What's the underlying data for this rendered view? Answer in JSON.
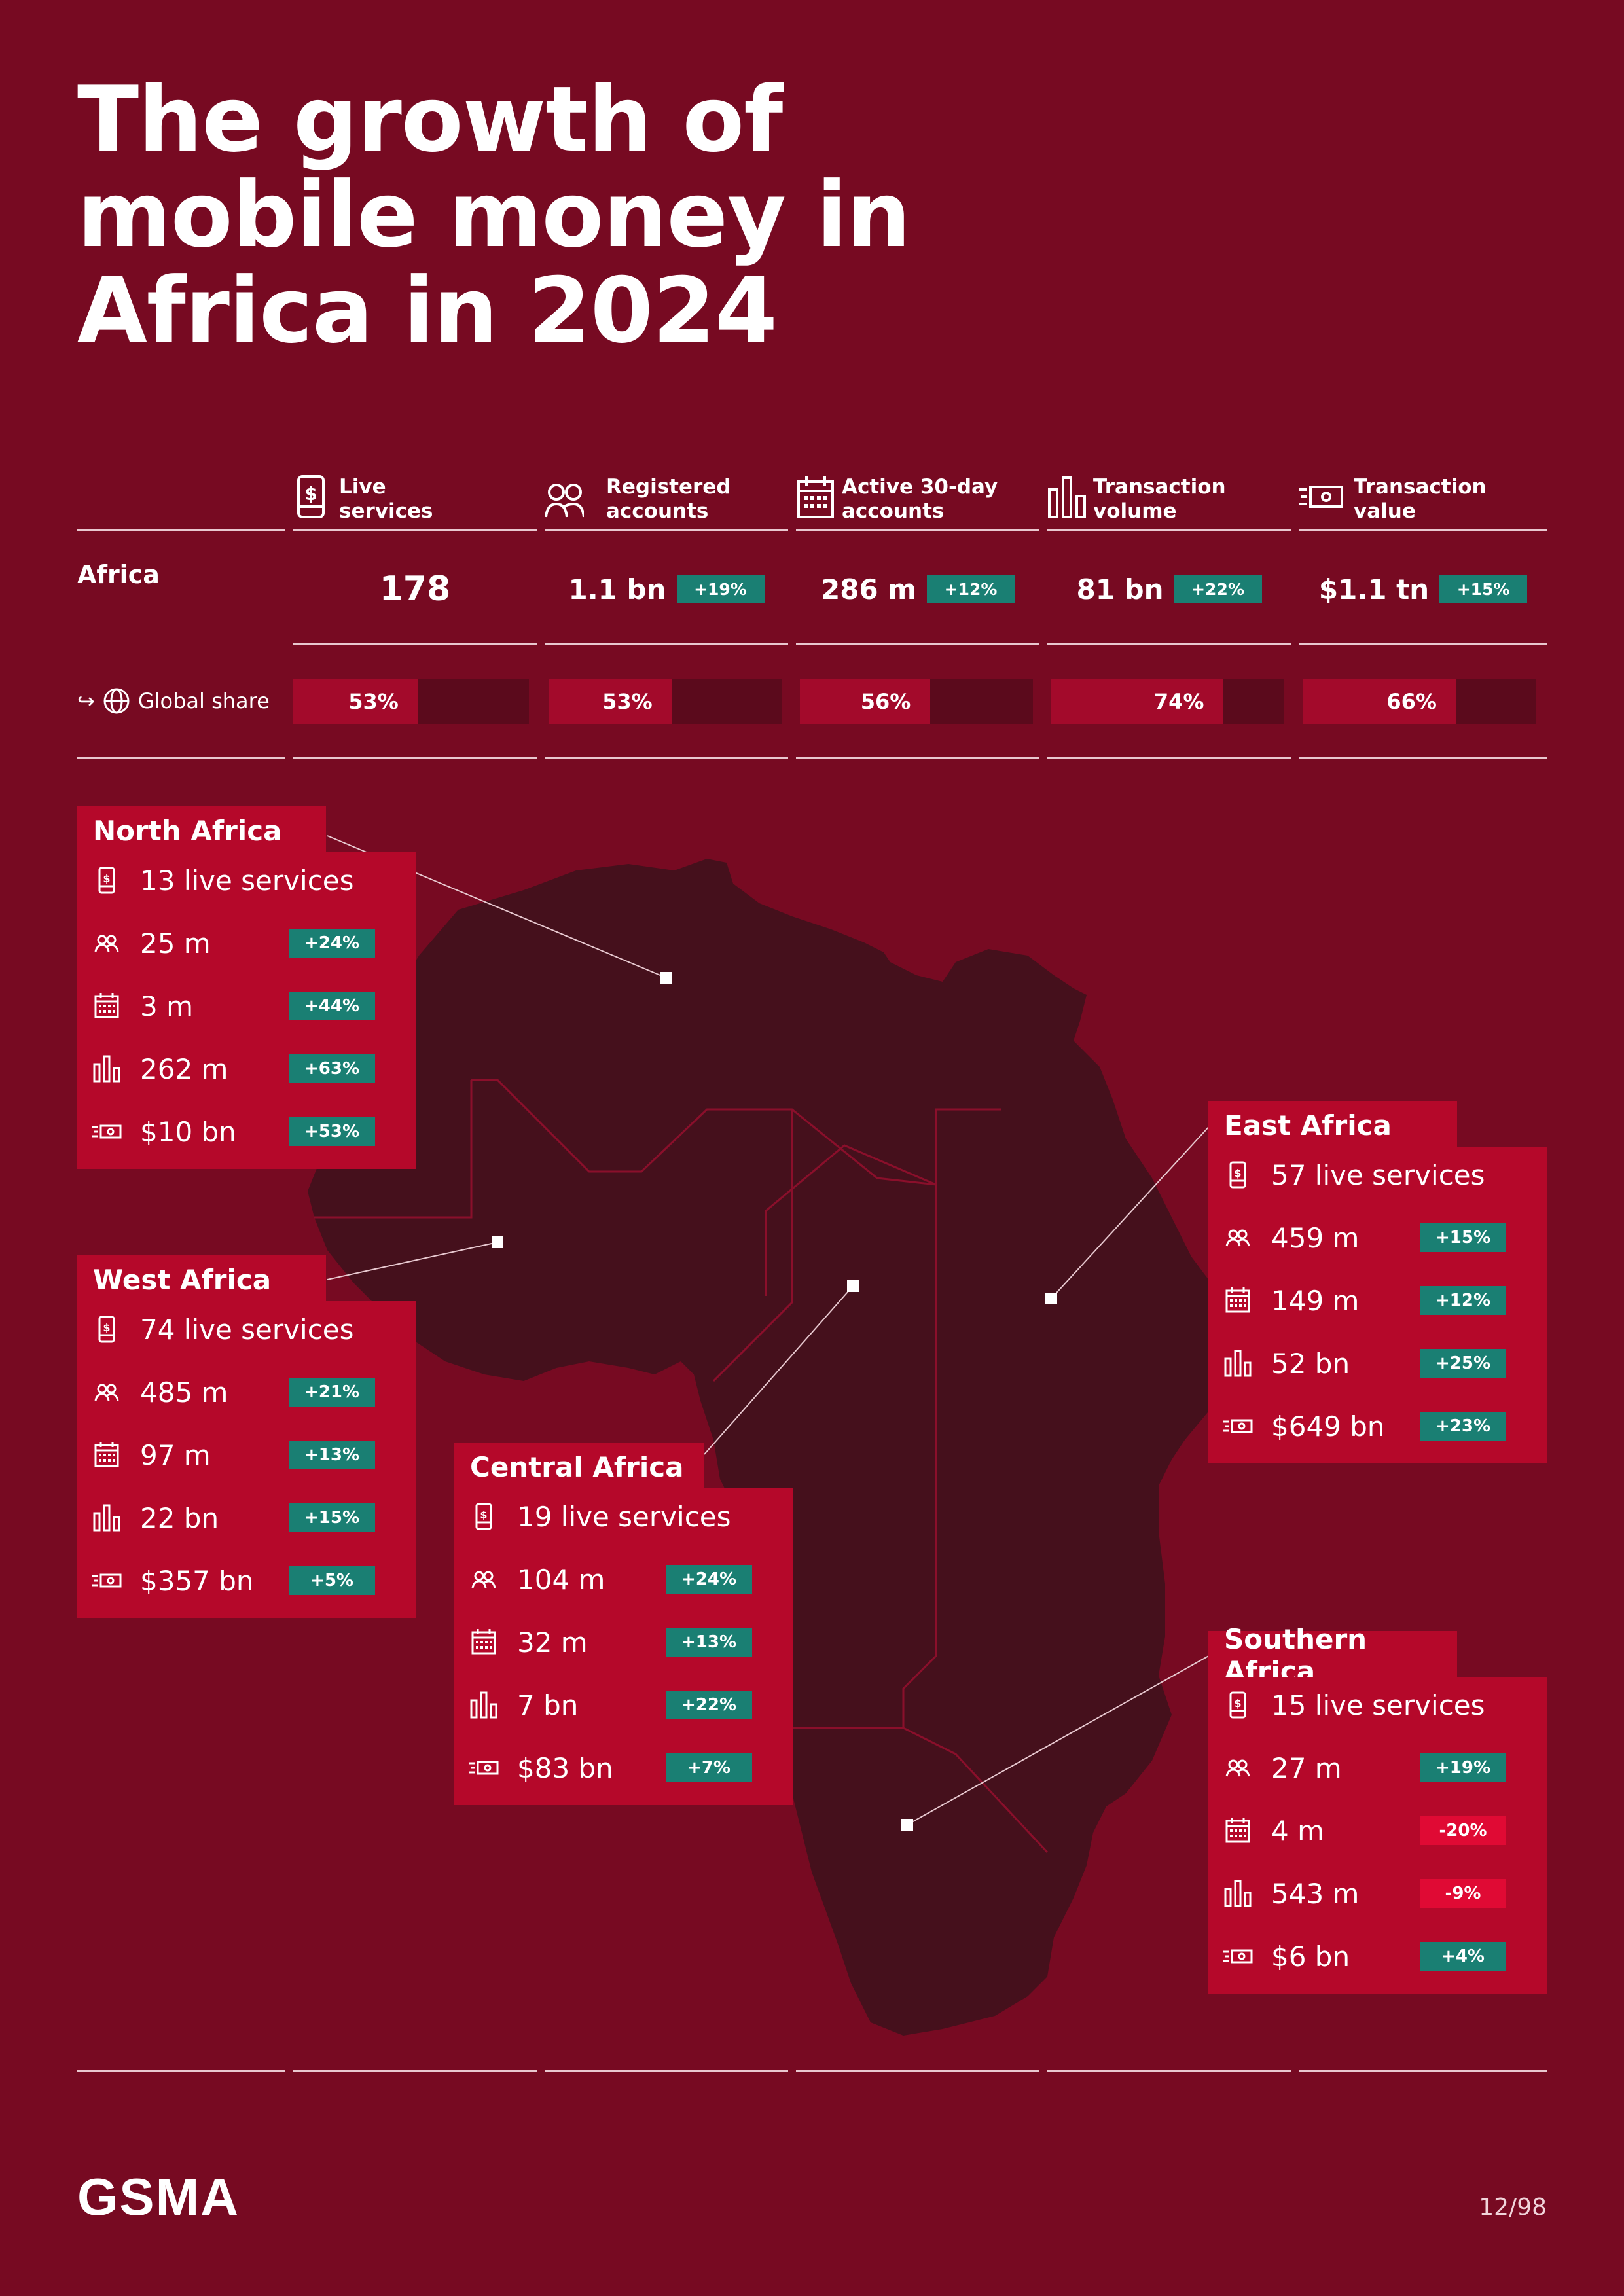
{
  "title_lines": [
    "The growth of",
    "mobile money in",
    "Africa in 2024"
  ],
  "columns": [
    {
      "label_line1": "Live",
      "label_line2": "services",
      "icon": "phone-dollar-icon"
    },
    {
      "label_line1": "Registered",
      "label_line2": "accounts",
      "icon": "users-icon"
    },
    {
      "label_line1": "Active 30-day",
      "label_line2": "accounts",
      "icon": "calendar-icon"
    },
    {
      "label_line1": "Transaction",
      "label_line2": "volume",
      "icon": "bar-chart-icon"
    },
    {
      "label_line1": "Transaction",
      "label_line2": "value",
      "icon": "cash-icon"
    }
  ],
  "africa": {
    "label": "Africa",
    "values": [
      {
        "value": "178",
        "change": ""
      },
      {
        "value": "1.1 bn",
        "change": "+19%"
      },
      {
        "value": "286 m",
        "change": "+12%"
      },
      {
        "value": "81 bn",
        "change": "+22%"
      },
      {
        "value": "$1.1 tn",
        "change": "+15%"
      }
    ]
  },
  "global_share": {
    "label": "Global share",
    "values": [
      {
        "text": "53%",
        "fraction": 0.53
      },
      {
        "text": "53%",
        "fraction": 0.53
      },
      {
        "text": "56%",
        "fraction": 0.56
      },
      {
        "text": "74%",
        "fraction": 0.74
      },
      {
        "text": "66%",
        "fraction": 0.66
      }
    ]
  },
  "regions": {
    "north": {
      "name": "North Africa",
      "live": "13 live services",
      "rows": [
        {
          "value": "25 m",
          "change": "+24%"
        },
        {
          "value": "3 m",
          "change": "+44%"
        },
        {
          "value": "262 m",
          "change": "+63%"
        },
        {
          "value": "$10 bn",
          "change": "+53%"
        }
      ]
    },
    "west": {
      "name": "West Africa",
      "live": "74 live services",
      "rows": [
        {
          "value": "485 m",
          "change": "+21%"
        },
        {
          "value": "97 m",
          "change": "+13%"
        },
        {
          "value": "22 bn",
          "change": "+15%"
        },
        {
          "value": "$357 bn",
          "change": "+5%"
        }
      ]
    },
    "central": {
      "name": "Central Africa",
      "live": "19 live services",
      "rows": [
        {
          "value": "104 m",
          "change": "+24%"
        },
        {
          "value": "32 m",
          "change": "+13%"
        },
        {
          "value": "7 bn",
          "change": "+22%"
        },
        {
          "value": "$83 bn",
          "change": "+7%"
        }
      ]
    },
    "east": {
      "name": "East Africa",
      "live": "57 live services",
      "rows": [
        {
          "value": "459 m",
          "change": "+15%"
        },
        {
          "value": "149 m",
          "change": "+12%"
        },
        {
          "value": "52 bn",
          "change": "+25%"
        },
        {
          "value": "$649 bn",
          "change": "+23%"
        }
      ]
    },
    "southern": {
      "name": "Southern Africa",
      "live": "15 live services",
      "rows": [
        {
          "value": "27 m",
          "change": "+19%"
        },
        {
          "value": "4 m",
          "change": "-20%"
        },
        {
          "value": "543 m",
          "change": "-9%"
        },
        {
          "value": "$6 bn",
          "change": "+4%"
        }
      ]
    }
  },
  "colors": {
    "background": "#770a22",
    "card": "#b5082a",
    "positive": "#1a7f73",
    "negative": "#e00a34",
    "map": "#45101c"
  },
  "footer": {
    "logo": "GSMA",
    "page": "12/98"
  }
}
